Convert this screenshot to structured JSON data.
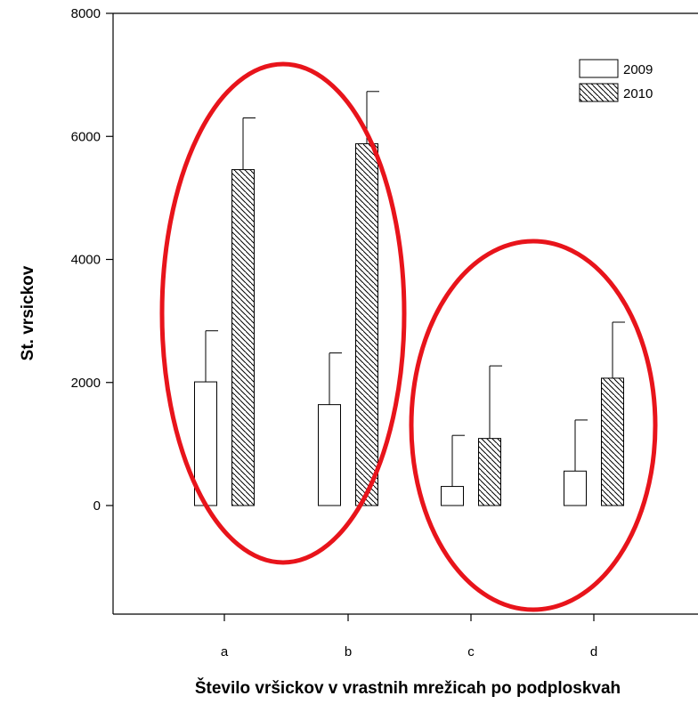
{
  "chart_data": {
    "type": "bar",
    "categories": [
      "a",
      "b",
      "c",
      "d"
    ],
    "series": [
      {
        "name": "2009",
        "pattern": "none",
        "values": [
          2010,
          1640,
          310,
          560
        ],
        "errors": [
          830,
          840,
          830,
          830
        ]
      },
      {
        "name": "2010",
        "pattern": "diagonal-hatch",
        "values": [
          5460,
          5880,
          1090,
          2070
        ],
        "errors": [
          840,
          850,
          1180,
          910
        ]
      }
    ],
    "ylim": [
      -1750,
      8000
    ],
    "yticks": [
      "0",
      "2000",
      "4000",
      "6000",
      "8000"
    ],
    "ytick_values": [
      0,
      2000,
      4000,
      6000,
      8000
    ],
    "ylabel": "St. vrsickov",
    "xlabel": "Število vršickov v vrastnih mrežicah po podploskvah",
    "title": "",
    "legend_position": "top-right",
    "grid": false,
    "annotations": [
      {
        "type": "ellipse",
        "color": "#e8141b",
        "groups": [
          "a",
          "b"
        ]
      },
      {
        "type": "ellipse",
        "color": "#e8141b",
        "groups": [
          "c",
          "d"
        ]
      }
    ]
  }
}
